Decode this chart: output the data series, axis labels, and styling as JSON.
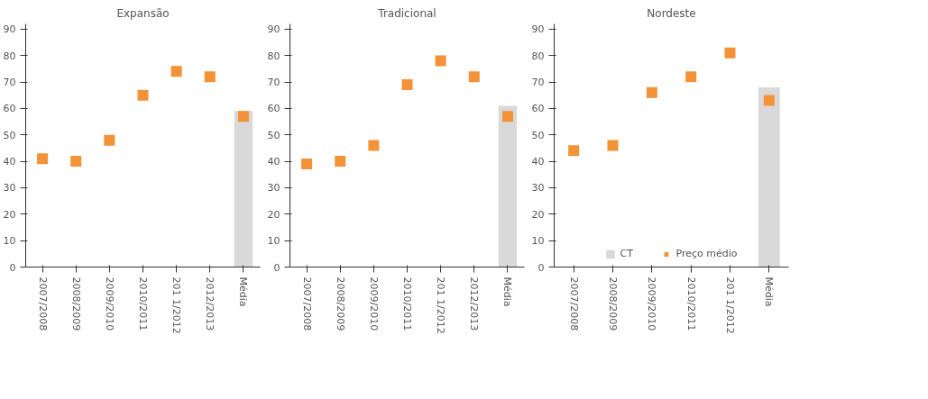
{
  "chart_data": [
    {
      "type": "scatter",
      "title": "Expansão",
      "categories": [
        "2007/2008",
        "2008/2009",
        "2009/2010",
        "2010/2011",
        "201 1/2012",
        "2012/2013",
        "Média"
      ],
      "ylim": [
        0,
        92
      ],
      "yticks": [
        0,
        10,
        20,
        30,
        40,
        50,
        60,
        70,
        80,
        90
      ],
      "grid": false,
      "marker": "square",
      "series": [
        {
          "type": "bar",
          "color": "#d9d9d9",
          "values": [
            null,
            null,
            null,
            null,
            null,
            null,
            59
          ]
        },
        {
          "color": "#f39237",
          "values": [
            41,
            40,
            48,
            65,
            74,
            72,
            57
          ]
        }
      ]
    },
    {
      "type": "scatter",
      "title": "Tradicional",
      "categories": [
        "2007/2008",
        "2008/2009",
        "2009/2010",
        "2010/2011",
        "201 1/2012",
        "2012/2013",
        "Média"
      ],
      "ylim": [
        0,
        92
      ],
      "yticks": [
        0,
        10,
        20,
        30,
        40,
        50,
        60,
        70,
        80,
        90
      ],
      "grid": false,
      "marker": "square",
      "series": [
        {
          "type": "bar",
          "color": "#d9d9d9",
          "values": [
            null,
            null,
            null,
            null,
            null,
            null,
            61
          ]
        },
        {
          "color": "#f39237",
          "values": [
            39,
            40,
            46,
            69,
            78,
            72,
            57
          ]
        }
      ]
    },
    {
      "type": "scatter",
      "title": "Nordeste",
      "categories": [
        "2007/2008",
        "2008/2009",
        "2009/2010",
        "2010/2011",
        "201 1/2012",
        "Média"
      ],
      "ylim": [
        0,
        92
      ],
      "yticks": [
        0,
        10,
        20,
        30,
        40,
        50,
        60,
        70,
        80,
        90
      ],
      "grid": false,
      "legend": "bottom",
      "marker": "square",
      "series": [
        {
          "name": "CT",
          "type": "bar",
          "color": "#d9d9d9",
          "values": [
            null,
            null,
            null,
            null,
            null,
            68
          ]
        },
        {
          "name": "Preço médio",
          "color": "#f39237",
          "values": [
            44,
            46,
            66,
            72,
            81,
            63
          ]
        }
      ]
    }
  ]
}
